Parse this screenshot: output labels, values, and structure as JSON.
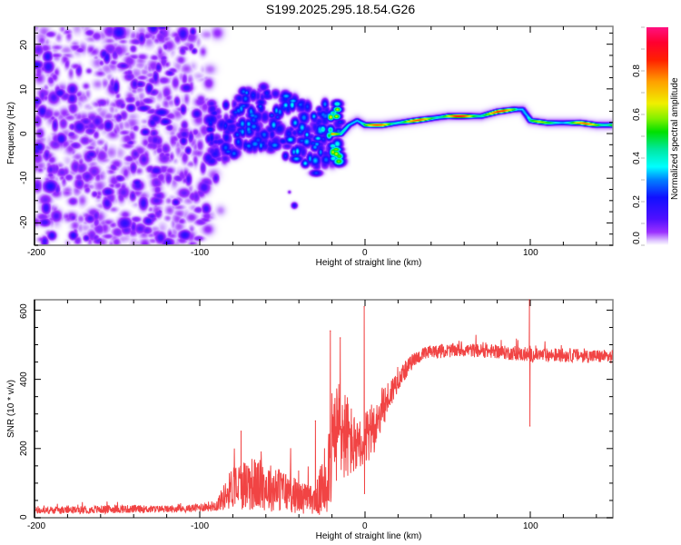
{
  "title": "S199.2025.295.18.54.G26",
  "colors": {
    "snr_line": "#f03030",
    "axis": "#000000",
    "frame": "#808080"
  },
  "chart_data": [
    {
      "type": "heatmap",
      "name": "spectrogram",
      "xlabel": "Height of straight line (km)",
      "ylabel": "Frequency (Hz)",
      "xlim": [
        -200,
        150
      ],
      "ylim": [
        -25,
        24
      ],
      "xticks": [
        -200,
        -100,
        0,
        100
      ],
      "xtick_labels": [
        "-200",
        "-100",
        "0",
        "100"
      ],
      "yticks": [
        -20,
        -10,
        0,
        10,
        20
      ],
      "ytick_labels": [
        "-20",
        "-10",
        "0",
        "10",
        "20"
      ],
      "colorbar": {
        "label": "Normalized spectral amplitude",
        "range": [
          0.0,
          1.0
        ],
        "ticks": [
          0.0,
          0.2,
          0.4,
          0.6,
          0.8
        ],
        "tick_labels": [
          "0.0",
          "0.2",
          "0.4",
          "0.6",
          "0.8"
        ],
        "colormap": "white-purple-blue-cyan-green-yellow-red-magenta"
      },
      "noise_region": {
        "x_from": -200,
        "x_to": -90,
        "amplitude": 0.1
      },
      "ridge": {
        "x": [
          -90,
          -80,
          -70,
          -60,
          -50,
          -40,
          -30,
          -25,
          -20,
          -15,
          -10,
          -5,
          0,
          10,
          20,
          30,
          40,
          50,
          60,
          70,
          80,
          90,
          95,
          100,
          110,
          120,
          130,
          140,
          150
        ],
        "frequency": [
          0,
          2,
          3,
          4,
          2,
          1,
          -2,
          0,
          0,
          0,
          2,
          3,
          2,
          2,
          2.5,
          3,
          3.5,
          4,
          4,
          4,
          5,
          5.5,
          5.5,
          3,
          2.5,
          2.5,
          2.5,
          2,
          2
        ],
        "amplitude": [
          0.2,
          0.25,
          0.3,
          0.3,
          0.35,
          0.35,
          0.3,
          0.4,
          0.8,
          0.5,
          0.6,
          0.5,
          0.75,
          0.9,
          0.8,
          0.85,
          0.85,
          0.9,
          0.95,
          0.9,
          0.9,
          0.85,
          0.4,
          0.7,
          0.6,
          0.7,
          0.8,
          0.9,
          0.85
        ]
      }
    },
    {
      "type": "line",
      "name": "snr",
      "xlabel": "Height of straight line (km)",
      "ylabel": "SNR (10 * v/v)",
      "xlim": [
        -200,
        150
      ],
      "ylim": [
        0,
        630
      ],
      "xticks": [
        -200,
        -100,
        0,
        100
      ],
      "xtick_labels": [
        "-200",
        "-100",
        "0",
        "100"
      ],
      "yticks": [
        0,
        200,
        400,
        600
      ],
      "ytick_labels": [
        "0",
        "200",
        "400",
        "600"
      ],
      "series": [
        {
          "name": "SNR",
          "x": [
            -200,
            -150,
            -110,
            -90,
            -80,
            -70,
            -60,
            -50,
            -40,
            -30,
            -25,
            -20,
            -15,
            -10,
            -5,
            -1,
            0,
            5,
            10,
            20,
            30,
            40,
            60,
            80,
            99,
            100,
            101,
            120,
            150
          ],
          "mean": [
            20,
            25,
            25,
            35,
            90,
            100,
            90,
            80,
            60,
            50,
            90,
            200,
            260,
            230,
            200,
            180,
            220,
            260,
            310,
            400,
            460,
            480,
            485,
            480,
            470,
            470,
            470,
            470,
            465
          ],
          "spread": [
            12,
            15,
            12,
            20,
            80,
            100,
            90,
            80,
            60,
            50,
            120,
            200,
            200,
            150,
            100,
            80,
            100,
            100,
            80,
            40,
            25,
            25,
            25,
            25,
            25,
            25,
            25,
            25,
            25
          ],
          "spikes": [
            {
              "x": -75,
              "y": 250
            },
            {
              "x": -30,
              "y": 280
            },
            {
              "x": -21,
              "y": 540
            },
            {
              "x": -15,
              "y": 520
            },
            {
              "x": -0.5,
              "y": 610
            },
            {
              "x": -0.3,
              "y": 70
            },
            {
              "x": 99.5,
              "y": 630
            },
            {
              "x": 99.8,
              "y": 265
            }
          ]
        }
      ]
    }
  ]
}
